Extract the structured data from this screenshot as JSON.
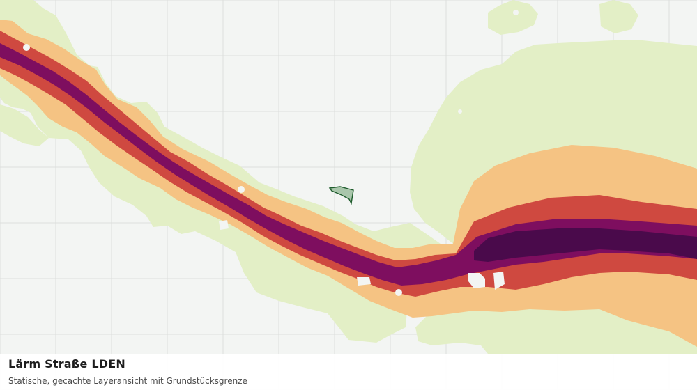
{
  "caption": {
    "title": "Lärm Straße LDEN",
    "subtitle": "Statische, gecachte Layeransicht mit Grundstücksgrenze"
  },
  "colors": {
    "background": "#f3f5f3",
    "grid_line": "#dcdfdc",
    "vegetation": "#e3efc6",
    "noise_band_1": "#f5c383",
    "noise_band_2": "#cf4940",
    "noise_band_3": "#7e0e5f",
    "noise_band_4": "#4a0a4b",
    "parcel_fill": "#a9c6ab",
    "parcel_outline": "#1e5c2c"
  }
}
